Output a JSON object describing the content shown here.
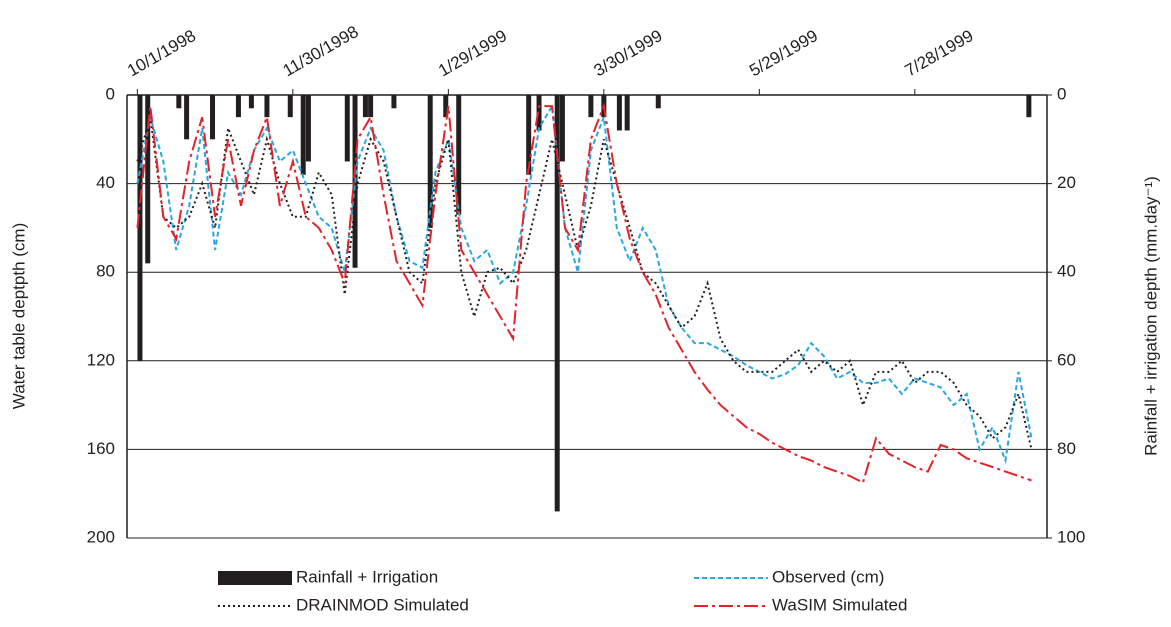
{
  "chart_data": {
    "type": "line",
    "ylabel": "Water table deptpth (cm)",
    "y2label": "Rainfall + irrigation depth (mm.day⁻¹)",
    "xlim": [
      -4,
      351
    ],
    "xticks": [
      {
        "value": 0,
        "label": "10/1/1998"
      },
      {
        "value": 60,
        "label": "11/30/1998"
      },
      {
        "value": 120,
        "label": "1/29/1999"
      },
      {
        "value": 180,
        "label": "3/30/1999"
      },
      {
        "value": 240,
        "label": "5/29/1999"
      },
      {
        "value": 300,
        "label": "7/28/1999"
      }
    ],
    "ylim": [
      0,
      200
    ],
    "yticks": [
      0,
      40,
      80,
      120,
      160,
      200
    ],
    "y2lim": [
      0,
      100
    ],
    "y2ticks": [
      0,
      20,
      40,
      60,
      80,
      100
    ],
    "inverted": true,
    "grid": true,
    "x": [
      0,
      5,
      10,
      15,
      20,
      25,
      30,
      35,
      40,
      45,
      50,
      55,
      60,
      65,
      70,
      75,
      80,
      85,
      90,
      95,
      100,
      105,
      110,
      115,
      120,
      125,
      130,
      135,
      140,
      145,
      150,
      155,
      160,
      165,
      170,
      175,
      180,
      185,
      190,
      195,
      200,
      205,
      210,
      215,
      220,
      225,
      230,
      235,
      240,
      245,
      250,
      255,
      260,
      265,
      270,
      275,
      280,
      285,
      290,
      295,
      300,
      305,
      310,
      315,
      320,
      325,
      330,
      335,
      340,
      345
    ],
    "series": [
      {
        "name": "Rainfall + Irrigation",
        "type": "bar",
        "axis": "y2",
        "color": "#231f20",
        "x": [
          1,
          4,
          16,
          19,
          29,
          39,
          44,
          50,
          59,
          64,
          66,
          81,
          84,
          88,
          90,
          99,
          113,
          119,
          124,
          151,
          155,
          162,
          164,
          175,
          180,
          186,
          189,
          201,
          344
        ],
        "values": [
          60,
          38,
          3,
          10,
          10,
          5,
          3,
          5,
          5,
          18,
          15,
          15,
          39,
          5,
          5,
          3,
          30,
          5,
          27,
          18,
          8,
          94,
          15,
          5,
          5,
          8,
          8,
          3,
          5
        ]
      },
      {
        "name": "Observed (cm)",
        "color": "#29a8e0",
        "dash": "5,3",
        "values": [
          40,
          10,
          30,
          70,
          50,
          15,
          70,
          35,
          45,
          25,
          15,
          30,
          25,
          40,
          55,
          60,
          80,
          30,
          15,
          25,
          55,
          75,
          78,
          35,
          20,
          60,
          75,
          70,
          85,
          80,
          50,
          15,
          5,
          60,
          80,
          25,
          10,
          60,
          75,
          60,
          70,
          95,
          105,
          112,
          112,
          115,
          118,
          122,
          125,
          128,
          126,
          122,
          112,
          118,
          128,
          125,
          130,
          130,
          128,
          135,
          128,
          130,
          132,
          140,
          135,
          160,
          150,
          165,
          125,
          155
        ]
      },
      {
        "name": "DRAINMOD Simulated",
        "color": "#231f20",
        "dash": "2,3",
        "values": [
          30,
          10,
          55,
          60,
          55,
          40,
          60,
          15,
          30,
          45,
          20,
          40,
          55,
          55,
          35,
          45,
          90,
          40,
          20,
          30,
          55,
          80,
          85,
          40,
          20,
          80,
          100,
          80,
          78,
          85,
          70,
          45,
          20,
          45,
          70,
          50,
          20,
          40,
          60,
          80,
          85,
          95,
          105,
          100,
          85,
          110,
          120,
          125,
          125,
          125,
          120,
          115,
          125,
          120,
          125,
          120,
          140,
          125,
          125,
          120,
          130,
          125,
          125,
          130,
          140,
          145,
          155,
          150,
          135,
          160
        ]
      },
      {
        "name": "WaSIM Simulated",
        "color": "#e4222a",
        "dash": "14,4,3,4",
        "values": [
          60,
          5,
          55,
          65,
          30,
          10,
          55,
          20,
          50,
          25,
          10,
          50,
          30,
          55,
          60,
          70,
          85,
          20,
          10,
          45,
          75,
          85,
          95,
          45,
          5,
          70,
          80,
          90,
          100,
          110,
          40,
          5,
          5,
          60,
          70,
          20,
          5,
          40,
          65,
          80,
          90,
          105,
          115,
          125,
          133,
          140,
          145,
          150,
          153,
          157,
          160,
          163,
          165,
          168,
          170,
          172,
          175,
          155,
          162,
          165,
          168,
          170,
          158,
          160,
          164,
          166,
          168,
          170,
          172,
          174
        ]
      }
    ]
  }
}
